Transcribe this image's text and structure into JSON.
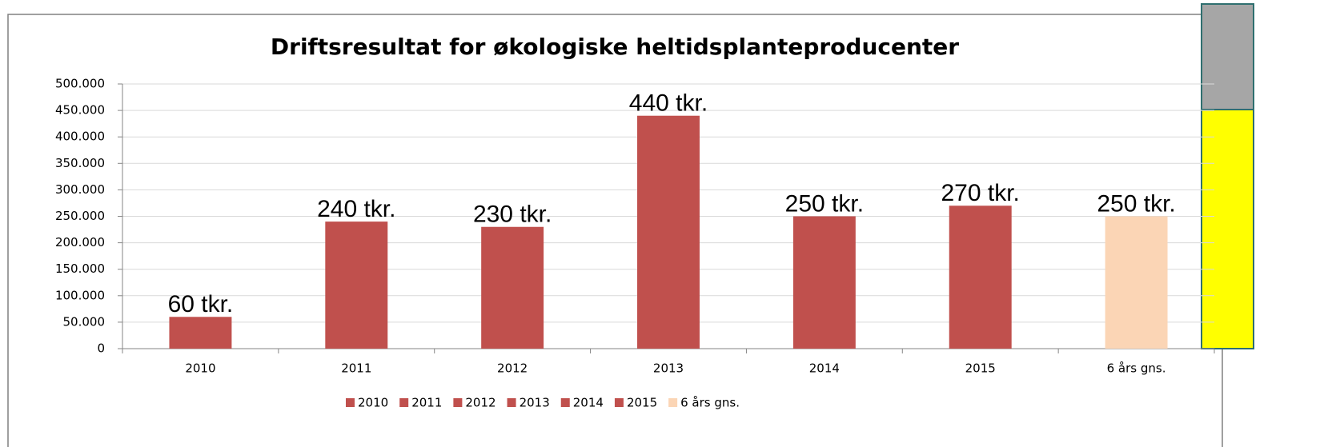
{
  "chart_data": {
    "type": "bar",
    "title": "Driftsresultat for økologiske heltidsplanteproducenter",
    "categories": [
      "2010",
      "2011",
      "2012",
      "2013",
      "2014",
      "2015",
      "6 års gns."
    ],
    "values": [
      60000,
      240000,
      230000,
      440000,
      250000,
      270000,
      250000
    ],
    "value_labels": [
      "60 tkr.",
      "240 tkr.",
      "230 tkr.",
      "440 tkr.",
      "250 tkr.",
      "270 tkr.",
      "250 tkr."
    ],
    "colors": [
      "#c0504d",
      "#c0504d",
      "#c0504d",
      "#c0504d",
      "#c0504d",
      "#c0504d",
      "#fbd5b5"
    ],
    "ylim": [
      0,
      500000
    ],
    "yticks": [
      0,
      {
        "value": 50000,
        "label": "50.000"
      },
      {
        "value": 100000,
        "label": "100.000"
      },
      {
        "value": 150000,
        "label": "150.000"
      },
      {
        "value": 200000,
        "label": "200.000"
      },
      {
        "value": 250000,
        "label": "250.000"
      },
      {
        "value": 300000,
        "label": "300.000"
      },
      {
        "value": 350000,
        "label": "350.000"
      },
      {
        "value": 400000,
        "label": "400.000"
      },
      {
        "value": 450000,
        "label": "450.000"
      },
      {
        "value": 500000,
        "label": "500.000"
      }
    ],
    "grid": true,
    "legend": "bottom"
  }
}
